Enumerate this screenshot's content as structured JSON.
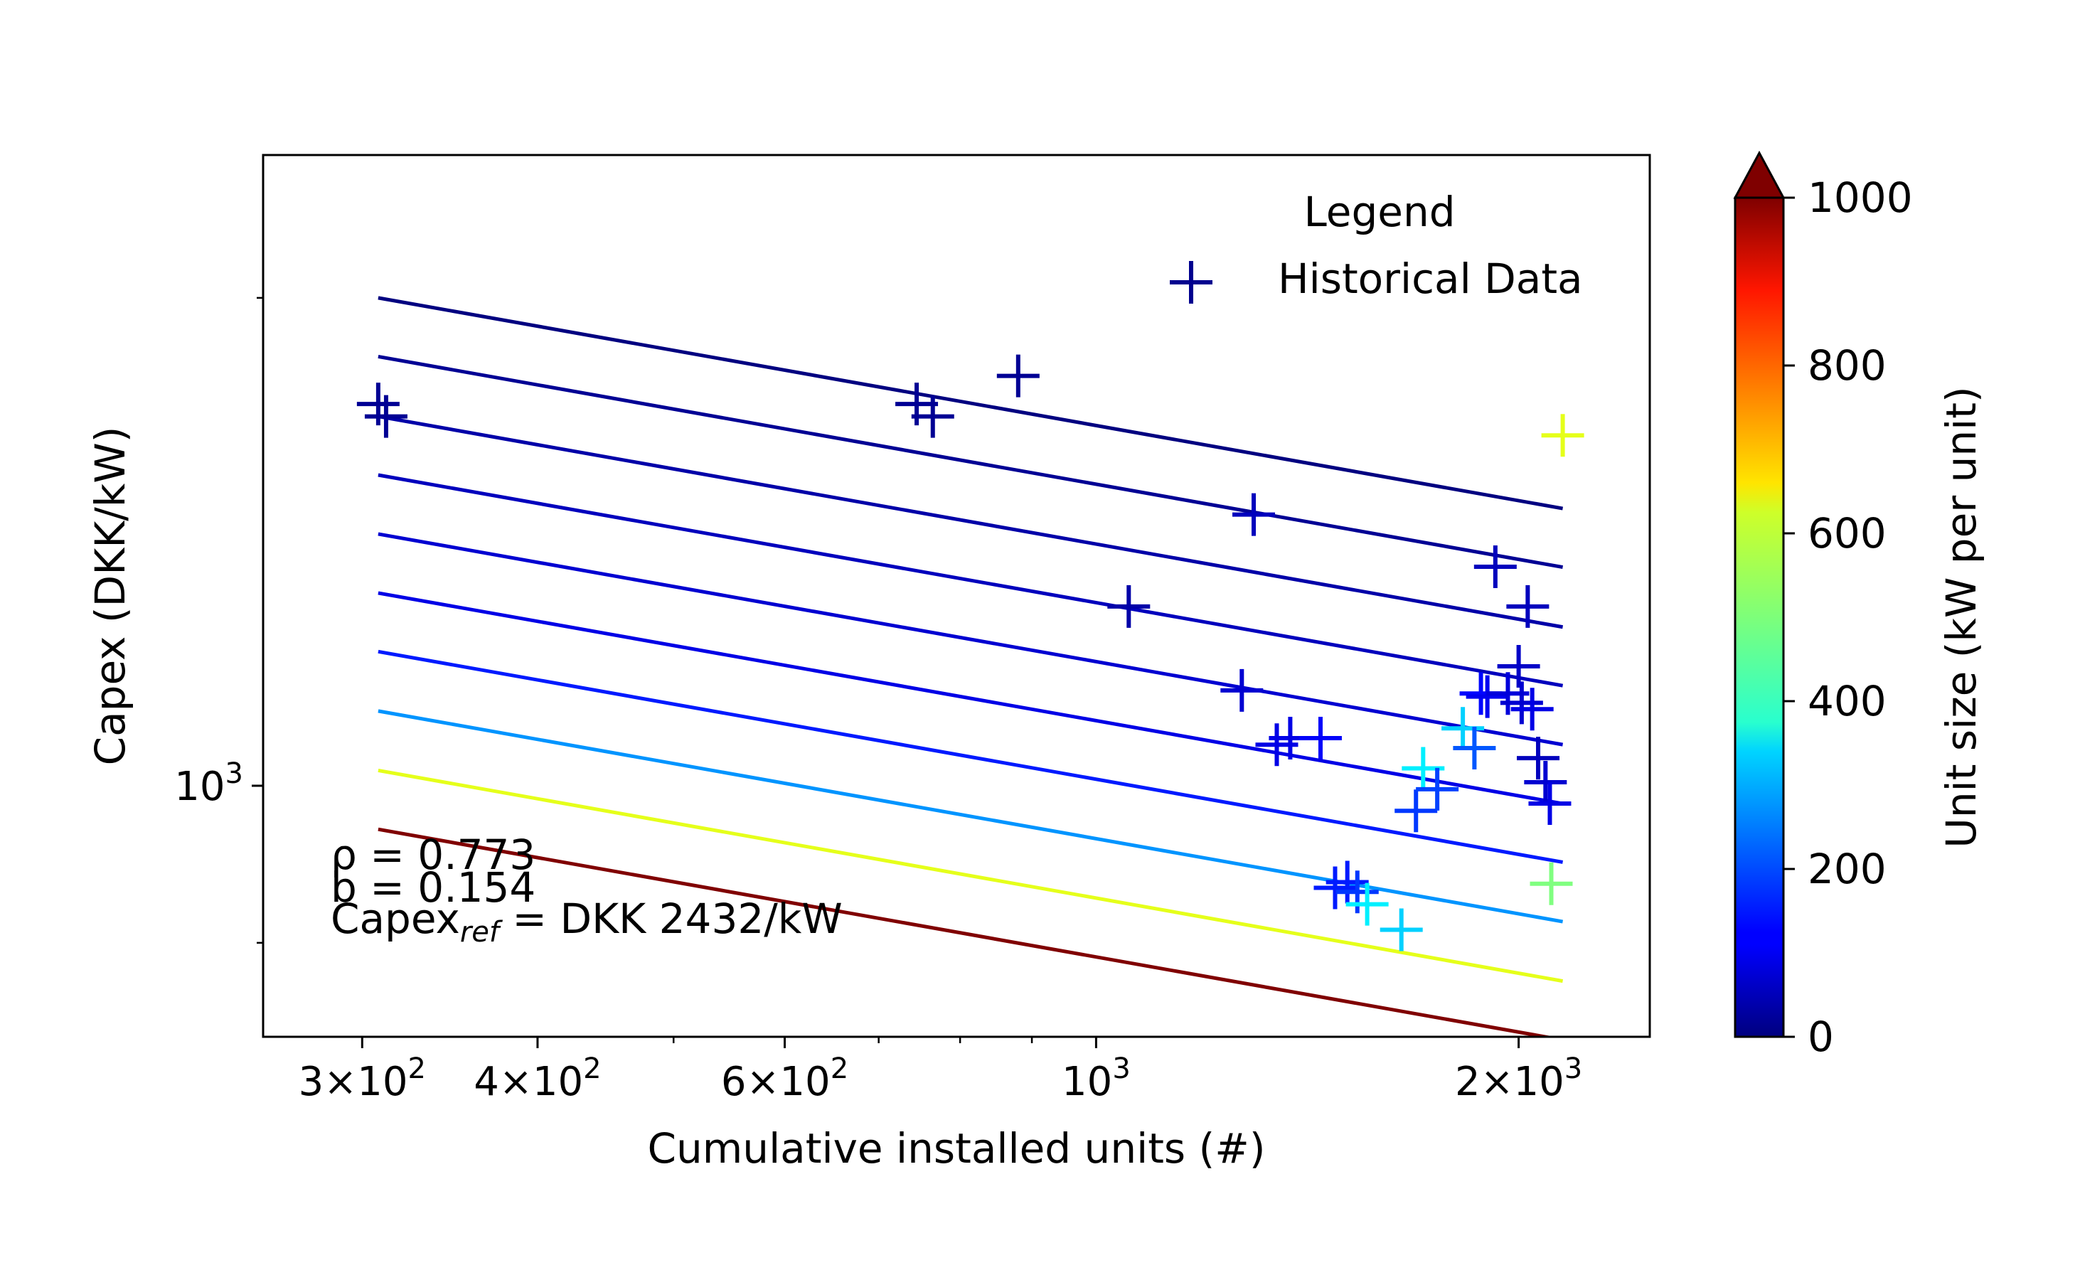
{
  "chart_data": {
    "type": "scatter",
    "title": "",
    "xlabel": "Cumulative installed units (#)",
    "ylabel": "Capex (DKK/kW)",
    "xscale": "log",
    "yscale": "log",
    "xlim": [
      255,
      2480
    ],
    "ylim": [
      700,
      2450
    ],
    "x_ticks": [
      {
        "value": 300,
        "base": "3",
        "exp": "2"
      },
      {
        "value": 400,
        "base": "4",
        "exp": "2"
      },
      {
        "value": 600,
        "base": "6",
        "exp": "2"
      },
      {
        "value": 1000,
        "base": "",
        "exp": "3"
      },
      {
        "value": 2000,
        "base": "2",
        "exp": "3"
      }
    ],
    "x_minor_ticks": [
      500,
      700,
      800,
      900
    ],
    "y_ticks": [
      {
        "value": 1000,
        "base": "",
        "exp": "3"
      }
    ],
    "y_minor_ticks": [
      800,
      2000
    ],
    "legend": {
      "title": "Legend",
      "entries": [
        {
          "label": "Historical Data",
          "marker": "+",
          "color": "#00008f"
        }
      ],
      "position": "top-right"
    },
    "annotations": {
      "rho": "ρ = 0.773",
      "b": "b = 0.154",
      "capex_ref_prefix": "Capex",
      "capex_ref_sub": "ref",
      "capex_ref_suffix": " = DKK 2432/kW"
    },
    "colorbar": {
      "label": "Unit size (kW per unit)",
      "colormap": "jet",
      "min": 0,
      "max": 1000,
      "extend": "max",
      "ticks": [
        0,
        200,
        400,
        600,
        800,
        1000
      ]
    },
    "fit_lines": {
      "x_start": 308,
      "x_end": 2150,
      "exponent": -0.154,
      "lines": [
        {
          "y_start": 2000,
          "size": 0
        },
        {
          "y_start": 1840,
          "size": 20
        },
        {
          "y_start": 1690,
          "size": 40
        },
        {
          "y_start": 1555,
          "size": 60
        },
        {
          "y_start": 1430,
          "size": 80
        },
        {
          "y_start": 1315,
          "size": 100
        },
        {
          "y_start": 1210,
          "size": 150
        },
        {
          "y_start": 1112,
          "size": 270
        },
        {
          "y_start": 1022,
          "size": 600
        },
        {
          "y_start": 940,
          "size": 1000
        }
      ]
    },
    "points": [
      {
        "x": 308,
        "y": 1720,
        "size": 20
      },
      {
        "x": 312,
        "y": 1690,
        "size": 20
      },
      {
        "x": 745,
        "y": 1720,
        "size": 20
      },
      {
        "x": 765,
        "y": 1690,
        "size": 20
      },
      {
        "x": 880,
        "y": 1790,
        "size": 20
      },
      {
        "x": 1055,
        "y": 1290,
        "size": 40
      },
      {
        "x": 1270,
        "y": 1145,
        "size": 80
      },
      {
        "x": 1295,
        "y": 1470,
        "size": 60
      },
      {
        "x": 1345,
        "y": 1060,
        "size": 100
      },
      {
        "x": 1375,
        "y": 1070,
        "size": 100
      },
      {
        "x": 1445,
        "y": 1070,
        "size": 120
      },
      {
        "x": 1480,
        "y": 865,
        "size": 150
      },
      {
        "x": 1510,
        "y": 872,
        "size": 150
      },
      {
        "x": 1535,
        "y": 860,
        "size": 180
      },
      {
        "x": 1560,
        "y": 845,
        "size": 360
      },
      {
        "x": 1650,
        "y": 815,
        "size": 330
      },
      {
        "x": 1690,
        "y": 965,
        "size": 180
      },
      {
        "x": 1710,
        "y": 1025,
        "size": 360
      },
      {
        "x": 1750,
        "y": 995,
        "size": 190
      },
      {
        "x": 1825,
        "y": 1085,
        "size": 330
      },
      {
        "x": 1860,
        "y": 1055,
        "size": 210
      },
      {
        "x": 1880,
        "y": 1140,
        "size": 130
      },
      {
        "x": 1900,
        "y": 1135,
        "size": 110
      },
      {
        "x": 1925,
        "y": 1365,
        "size": 60
      },
      {
        "x": 1965,
        "y": 1140,
        "size": 90
      },
      {
        "x": 2000,
        "y": 1185,
        "size": 70
      },
      {
        "x": 2010,
        "y": 1125,
        "size": 80
      },
      {
        "x": 2030,
        "y": 1290,
        "size": 60
      },
      {
        "x": 2045,
        "y": 1115,
        "size": 100
      },
      {
        "x": 2065,
        "y": 1040,
        "size": 60
      },
      {
        "x": 2090,
        "y": 1005,
        "size": 80
      },
      {
        "x": 2105,
        "y": 975,
        "size": 100
      },
      {
        "x": 2110,
        "y": 870,
        "size": 500
      },
      {
        "x": 2150,
        "y": 1645,
        "size": 600
      }
    ]
  }
}
